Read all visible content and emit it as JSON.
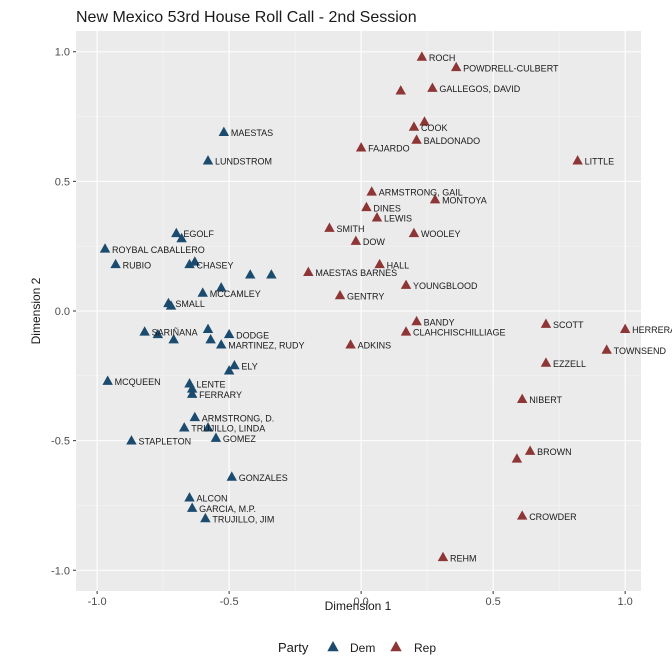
{
  "chart_data": {
    "type": "scatter",
    "title": "New Mexico 53rd House Roll Call - 2nd Session",
    "xlabel": "Dimension 1",
    "ylabel": "Dimension 2",
    "xlim": [
      -1.08,
      1.06
    ],
    "ylim": [
      -1.08,
      1.08
    ],
    "x_ticks": [
      -1.0,
      -0.5,
      0.0,
      0.5,
      1.0
    ],
    "x_tick_labels": [
      "-1.0",
      "-0.5",
      "0.0",
      "0.5",
      "1.0"
    ],
    "y_ticks": [
      -1.0,
      -0.5,
      0.0,
      0.5,
      1.0
    ],
    "y_tick_labels": [
      "-1.0",
      "-0.5",
      "0.0",
      "0.5",
      "1.0"
    ],
    "grid": true,
    "legend": {
      "title": "Party",
      "position": "bottom"
    },
    "series": [
      {
        "name": "Dem",
        "color": "#1b4b6e",
        "marker": "triangle",
        "points": [
          {
            "x": -0.52,
            "y": 0.69,
            "label": "MAESTAS"
          },
          {
            "x": -0.58,
            "y": 0.58,
            "label": "LUNDSTROM"
          },
          {
            "x": -0.7,
            "y": 0.3,
            "label": "EGOLF"
          },
          {
            "x": -0.68,
            "y": 0.28,
            "label": ""
          },
          {
            "x": -0.97,
            "y": 0.24,
            "label": "ROYBAL CABALLERO"
          },
          {
            "x": -0.93,
            "y": 0.18,
            "label": "RUBIO"
          },
          {
            "x": -0.65,
            "y": 0.18,
            "label": "CHASEY"
          },
          {
            "x": -0.63,
            "y": 0.19,
            "label": ""
          },
          {
            "x": -0.42,
            "y": 0.14,
            "label": ""
          },
          {
            "x": -0.34,
            "y": 0.14,
            "label": ""
          },
          {
            "x": -0.53,
            "y": 0.09,
            "label": ""
          },
          {
            "x": -0.6,
            "y": 0.07,
            "label": "MCCAMLEY"
          },
          {
            "x": -0.73,
            "y": 0.03,
            "label": "SMALL"
          },
          {
            "x": -0.72,
            "y": 0.02,
            "label": ""
          },
          {
            "x": -0.82,
            "y": -0.08,
            "label": "SARIÑANA"
          },
          {
            "x": -0.77,
            "y": -0.09,
            "label": ""
          },
          {
            "x": -0.71,
            "y": -0.11,
            "label": ""
          },
          {
            "x": -0.58,
            "y": -0.07,
            "label": ""
          },
          {
            "x": -0.5,
            "y": -0.09,
            "label": "DODGE"
          },
          {
            "x": -0.57,
            "y": -0.11,
            "label": ""
          },
          {
            "x": -0.53,
            "y": -0.13,
            "label": "MARTINEZ, RUDY"
          },
          {
            "x": -0.48,
            "y": -0.21,
            "label": "ELY"
          },
          {
            "x": -0.5,
            "y": -0.23,
            "label": ""
          },
          {
            "x": -0.96,
            "y": -0.27,
            "label": "MCQUEEN"
          },
          {
            "x": -0.65,
            "y": -0.28,
            "label": "LENTE"
          },
          {
            "x": -0.64,
            "y": -0.3,
            "label": ""
          },
          {
            "x": -0.64,
            "y": -0.32,
            "label": "FERRARY"
          },
          {
            "x": -0.63,
            "y": -0.41,
            "label": "ARMSTRONG, D."
          },
          {
            "x": -0.67,
            "y": -0.45,
            "label": "TRUJILLO, LINDA"
          },
          {
            "x": -0.58,
            "y": -0.45,
            "label": ""
          },
          {
            "x": -0.55,
            "y": -0.49,
            "label": "GOMEZ"
          },
          {
            "x": -0.87,
            "y": -0.5,
            "label": "STAPLETON"
          },
          {
            "x": -0.49,
            "y": -0.64,
            "label": "GONZALES"
          },
          {
            "x": -0.65,
            "y": -0.72,
            "label": "ALCON"
          },
          {
            "x": -0.64,
            "y": -0.76,
            "label": "GARCIA, M.P."
          },
          {
            "x": -0.59,
            "y": -0.8,
            "label": "TRUJILLO, JIM"
          }
        ]
      },
      {
        "name": "Rep",
        "color": "#8e3535",
        "marker": "triangle",
        "points": [
          {
            "x": 0.23,
            "y": 0.98,
            "label": "ROCH"
          },
          {
            "x": 0.36,
            "y": 0.94,
            "label": "POWDRELL-CULBERT"
          },
          {
            "x": 0.15,
            "y": 0.85,
            "label": ""
          },
          {
            "x": 0.27,
            "y": 0.86,
            "label": "GALLEGOS, DAVID"
          },
          {
            "x": 0.24,
            "y": 0.73,
            "label": ""
          },
          {
            "x": 0.2,
            "y": 0.71,
            "label": "COOK"
          },
          {
            "x": 0.21,
            "y": 0.66,
            "label": "BALDONADO"
          },
          {
            "x": 0.0,
            "y": 0.63,
            "label": "FAJARDO"
          },
          {
            "x": 0.82,
            "y": 0.58,
            "label": "LITTLE"
          },
          {
            "x": 0.04,
            "y": 0.46,
            "label": "ARMSTRONG, GAIL"
          },
          {
            "x": 0.28,
            "y": 0.43,
            "label": "MONTOYA"
          },
          {
            "x": 0.02,
            "y": 0.4,
            "label": "DINES"
          },
          {
            "x": 0.06,
            "y": 0.36,
            "label": "LEWIS"
          },
          {
            "x": -0.12,
            "y": 0.32,
            "label": "SMITH"
          },
          {
            "x": 0.2,
            "y": 0.3,
            "label": "WOOLEY"
          },
          {
            "x": -0.02,
            "y": 0.27,
            "label": "DOW"
          },
          {
            "x": 0.07,
            "y": 0.18,
            "label": "HALL"
          },
          {
            "x": -0.2,
            "y": 0.15,
            "label": "MAESTAS BARNES"
          },
          {
            "x": 0.17,
            "y": 0.1,
            "label": "YOUNGBLOOD"
          },
          {
            "x": -0.08,
            "y": 0.06,
            "label": "GENTRY"
          },
          {
            "x": 0.21,
            "y": -0.04,
            "label": "BANDY"
          },
          {
            "x": 0.17,
            "y": -0.08,
            "label": "CLAHCHISCHILLIAGE"
          },
          {
            "x": -0.04,
            "y": -0.13,
            "label": "ADKINS"
          },
          {
            "x": 0.7,
            "y": -0.05,
            "label": "SCOTT"
          },
          {
            "x": 1.0,
            "y": -0.07,
            "label": "HERRERA"
          },
          {
            "x": 0.93,
            "y": -0.15,
            "label": "TOWNSEND"
          },
          {
            "x": 0.7,
            "y": -0.2,
            "label": "EZZELL"
          },
          {
            "x": 0.61,
            "y": -0.34,
            "label": "NIBERT"
          },
          {
            "x": 0.64,
            "y": -0.54,
            "label": "BROWN"
          },
          {
            "x": 0.59,
            "y": -0.57,
            "label": ""
          },
          {
            "x": 0.61,
            "y": -0.79,
            "label": "CROWDER"
          },
          {
            "x": 0.31,
            "y": -0.95,
            "label": "REHM"
          }
        ]
      }
    ]
  }
}
